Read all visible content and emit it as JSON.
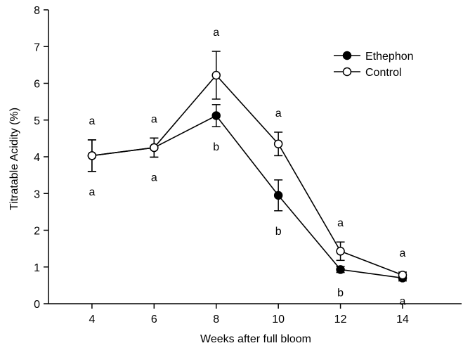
{
  "chart_data": {
    "type": "line",
    "title": "",
    "xlabel": "Weeks after full bloom",
    "ylabel": "Titratable Acidity (%)",
    "xlim": [
      2.6,
      15.9
    ],
    "ylim": [
      0,
      8
    ],
    "x_ticks": [
      4,
      6,
      8,
      10,
      12,
      14
    ],
    "y_ticks": [
      0,
      1,
      2,
      3,
      4,
      5,
      6,
      7,
      8
    ],
    "grid": false,
    "legend_position": "top-right",
    "series": [
      {
        "name": "Ethephon",
        "marker": "filled-circle",
        "x": [
          4,
          6,
          8,
          10,
          12,
          14
        ],
        "y": [
          4.03,
          4.25,
          5.12,
          2.95,
          0.93,
          0.7
        ],
        "error": [
          0.43,
          0.26,
          0.3,
          0.42,
          0.08,
          0.08
        ]
      },
      {
        "name": "Control",
        "marker": "open-circle",
        "x": [
          4,
          6,
          8,
          10,
          12,
          14
        ],
        "y": [
          4.03,
          4.25,
          6.22,
          4.35,
          1.43,
          0.78
        ],
        "error": [
          0.43,
          0.26,
          0.65,
          0.32,
          0.25,
          0.08
        ]
      }
    ],
    "annotations": [
      {
        "x": 4,
        "upper": "a",
        "lower": "a"
      },
      {
        "x": 6,
        "upper": "a",
        "lower": "a"
      },
      {
        "x": 8,
        "upper": "a",
        "lower": "b"
      },
      {
        "x": 10,
        "upper": "a",
        "lower": "b"
      },
      {
        "x": 12,
        "upper": "a",
        "lower": "b"
      },
      {
        "x": 14,
        "upper": "a",
        "lower": "a"
      }
    ],
    "colors": {
      "line": "#000000",
      "filled_marker": "#000000",
      "open_marker_fill": "#ffffff"
    }
  }
}
